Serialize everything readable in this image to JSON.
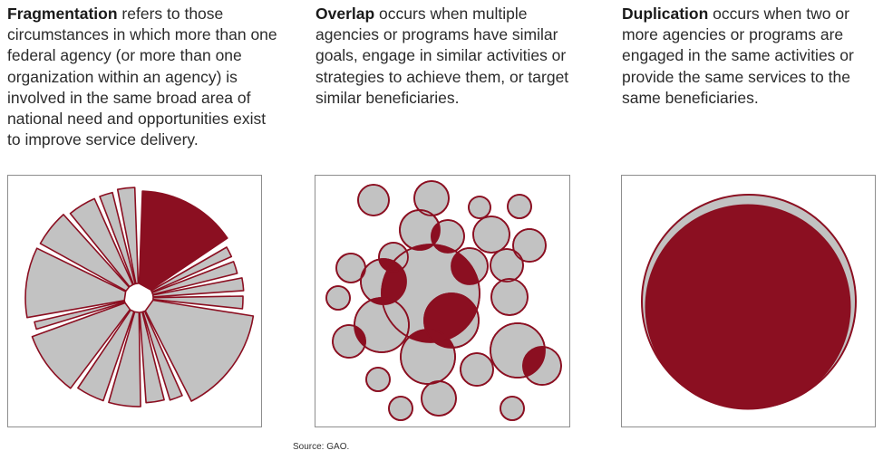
{
  "fragmentation": {
    "term": "Fragmentation",
    "definition": " refers to those circumstances in which more than one federal agency (or more than one organization within an agency) is involved in the same broad area of national need and opportunities exist to improve service delivery."
  },
  "overlap": {
    "term": "Overlap",
    "definition": " occurs when multiple agencies or programs have similar goals, engage in similar activities or strategies to achieve them, or target similar beneficiaries."
  },
  "duplication": {
    "term": "Duplication",
    "definition": " occurs when two or more agencies or programs are engaged in the same activities or provide the same services to the same beneficiaries."
  },
  "source": "Source: GAO.",
  "colors": {
    "accent": "#8b0f21",
    "fill_gray": "#c2c2c2",
    "panel_border": "#8e8e8e"
  }
}
